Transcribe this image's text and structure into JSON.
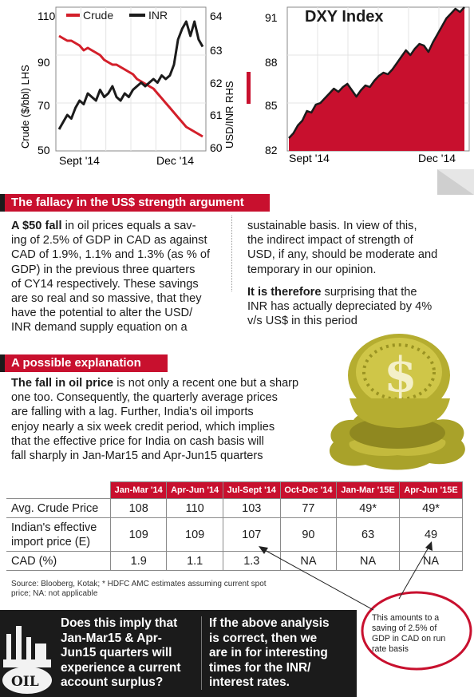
{
  "charts": {
    "left": {
      "legend": {
        "crude": "Crude",
        "inr": "INR"
      },
      "ylabel_left": "Crude ($/bbl) LHS",
      "ylabel_right": "USD/INR RHS",
      "left_ticks": [
        "110",
        "90",
        "70",
        "50"
      ],
      "right_ticks": [
        "64",
        "63",
        "62",
        "61",
        "60"
      ],
      "x_ticks": [
        "Sept '14",
        "Dec '14"
      ]
    },
    "right": {
      "title": "DXY Index",
      "y_ticks": [
        "91",
        "88",
        "85",
        "82"
      ],
      "x_ticks": [
        "Sept '14",
        "Dec '14"
      ]
    },
    "colors": {
      "crude": "#d31f2a",
      "inr": "#1b1b1b",
      "area": "#c8102e"
    }
  },
  "chart_data": [
    {
      "type": "line",
      "x_range": [
        "Sept '14",
        "Dec '14"
      ],
      "series": [
        {
          "name": "Crude",
          "axis": "left",
          "ylim": [
            50,
            110
          ],
          "values": [
            98,
            97,
            96,
            96,
            95,
            94,
            92,
            93,
            92,
            91,
            90,
            88,
            87,
            86,
            86,
            85,
            84,
            83,
            82,
            80,
            79,
            78,
            77,
            76,
            74,
            72,
            70,
            68,
            66,
            64,
            62,
            60,
            59,
            58,
            57,
            56
          ]
        },
        {
          "name": "INR",
          "axis": "right",
          "ylim": [
            60,
            64
          ],
          "values": [
            60.6,
            60.8,
            61.0,
            60.9,
            61.2,
            61.4,
            61.3,
            61.6,
            61.5,
            61.4,
            61.7,
            61.5,
            61.6,
            61.8,
            61.5,
            61.4,
            61.6,
            61.5,
            61.7,
            61.8,
            61.9,
            61.8,
            61.9,
            62.0,
            61.9,
            62.1,
            62.0,
            62.1,
            62.4,
            63.1,
            63.4,
            63.6,
            63.2,
            63.6,
            63.1,
            62.9
          ]
        }
      ]
    },
    {
      "type": "area",
      "title": "DXY Index",
      "x_range": [
        "Sept '14",
        "Dec '14"
      ],
      "ylim": [
        82,
        91
      ],
      "series": [
        {
          "values": [
            82.8,
            83.1,
            83.6,
            83.9,
            84.5,
            84.4,
            84.9,
            85.0,
            85.3,
            85.6,
            85.9,
            85.7,
            86.0,
            86.2,
            85.8,
            85.4,
            85.8,
            86.1,
            86.0,
            86.4,
            86.7,
            86.9,
            86.8,
            87.1,
            87.5,
            87.9,
            88.3,
            88.0,
            88.4,
            88.7,
            88.6,
            88.2,
            88.8,
            89.3,
            89.8,
            90.3,
            90.6,
            90.9,
            90.7,
            91.0
          ]
        }
      ]
    },
    {
      "type": "table",
      "columns": [
        "Jan-Mar '14",
        "Apr-Jun '14",
        "Jul-Sept '14",
        "Oct-Dec '14",
        "Jan-Mar '15E",
        "Apr-Jun '15E"
      ],
      "rows": [
        {
          "label": "Avg. Crude Price",
          "values": [
            "108",
            "110",
            "103",
            "77",
            "49*",
            "49*"
          ]
        },
        {
          "label": "Indian's effective import price (E)",
          "values": [
            "109",
            "109",
            "107",
            "90",
            "63",
            "49"
          ]
        },
        {
          "label": "CAD (%)",
          "values": [
            "1.9",
            "1.1",
            "1.3",
            "NA",
            "NA",
            "NA"
          ]
        }
      ]
    }
  ],
  "section1": {
    "title": "The fallacy in the US$ strength argument",
    "col1_lead": "A $50 fall",
    "col1_lines": [
      "in oil prices equals a sav-",
      "ing of 2.5% of GDP in CAD as against",
      "CAD of 1.9%, 1.1% and 1.3% (as % of",
      "GDP) in the previous three quarters",
      "of CY14 respectively.  These savings",
      "are so real and so massive, that they",
      "have the potential to alter the USD/",
      "INR demand supply equation on a"
    ],
    "col2_lines": [
      "sustainable basis.  In view of this,",
      "the indirect impact of strength of",
      "USD, if any, should be moderate and",
      "temporary in our opinion."
    ],
    "col2_lead": "It is therefore",
    "col2_lines_b": [
      "surprising that the",
      "INR has actually depreciated by 4%",
      "v/s US$ in this period"
    ]
  },
  "section2": {
    "title": "A possible explanation",
    "lead": "The fall in oil price",
    "lines": [
      "is not only a recent one but a sharp",
      "one too. Consequently, the quarterly average prices",
      "are falling with a lag.  Further, India's oil imports",
      "enjoy nearly a six week credit period, which implies",
      "that the effective price for India on cash basis will",
      "fall sharply in Jan-Mar15 and Apr-Jun15 quarters"
    ]
  },
  "source": "Source: Blooberg, Kotak; * HDFC AMC estimates assuming current spot price; NA: not applicable",
  "callout": [
    "This amounts to a",
    "saving of 2.5% of",
    "GDP in CAD on run",
    "rate basis"
  ],
  "bottom": {
    "q1_lead": "Does this",
    "q1_lines": [
      "imply that",
      "Jan-Mar15 & Apr-",
      "Jun15 quarters will",
      "experience a current",
      "account surplus?"
    ],
    "q2_lead": "If the",
    "q2_lines": [
      "above analysis",
      "is correct, then we",
      "are in for interesting",
      "times for the INR/",
      "interest rates."
    ],
    "oil_label": "OIL"
  }
}
